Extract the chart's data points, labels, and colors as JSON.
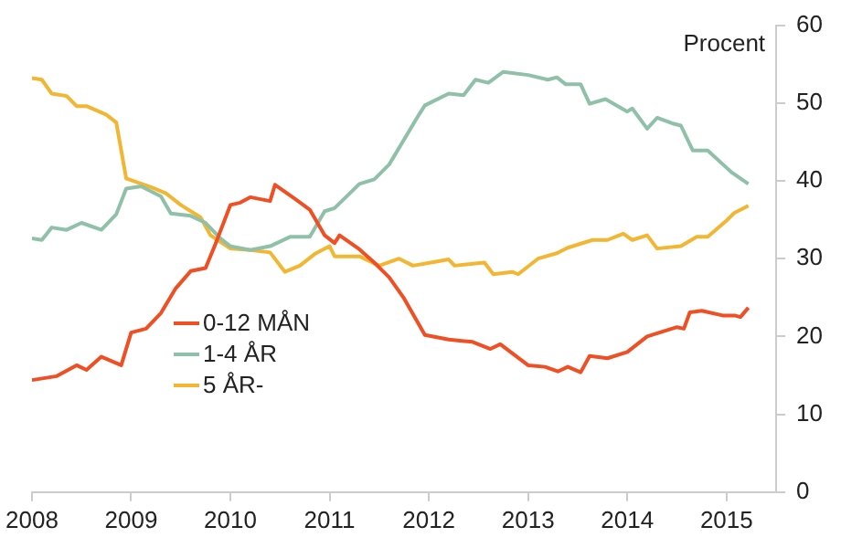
{
  "chart_data": {
    "type": "line",
    "ylabel": "Procent",
    "xlim": [
      2008,
      2015.5
    ],
    "xticks": [
      2008,
      2009,
      2010,
      2011,
      2012,
      2013,
      2014,
      2015
    ],
    "ylim": [
      0,
      60
    ],
    "yticks": [
      0,
      10,
      20,
      30,
      40,
      50,
      60
    ],
    "grid": false,
    "legend": "left",
    "marker": "none",
    "line_style": "solid",
    "series": [
      {
        "name": "0-12 MÅN",
        "color": "#f04e23",
        "x": [
          2008.0,
          2008.25,
          2008.45,
          2008.55,
          2008.7,
          2008.9,
          2009.0,
          2009.15,
          2009.3,
          2009.45,
          2009.6,
          2009.75,
          2009.85,
          2010.0,
          2010.1,
          2010.2,
          2010.4,
          2010.45,
          2010.65,
          2010.8,
          2010.95,
          2011.05,
          2011.1,
          2011.3,
          2011.45,
          2011.6,
          2011.75,
          2011.96,
          2012.2,
          2012.44,
          2012.62,
          2012.72,
          2013.0,
          2013.17,
          2013.3,
          2013.4,
          2013.53,
          2013.62,
          2013.8,
          2014.0,
          2014.2,
          2014.5,
          2014.57,
          2014.63,
          2014.75,
          2014.96,
          2015.08,
          2015.14,
          2015.22
        ],
        "values": [
          14.4,
          14.9,
          16.3,
          15.7,
          17.4,
          16.3,
          20.5,
          21,
          23,
          26.2,
          28.4,
          28.8,
          31.9,
          36.9,
          37.2,
          37.9,
          37.4,
          39.5,
          37.7,
          36.3,
          33,
          32,
          33,
          31.2,
          29.5,
          27.6,
          24.9,
          20.2,
          19.6,
          19.3,
          18.4,
          19,
          16.3,
          16.1,
          15.5,
          16.1,
          15.4,
          17.5,
          17.2,
          18,
          20,
          21.2,
          21,
          23.1,
          23.3,
          22.7,
          22.7,
          22.5,
          23.7
        ]
      },
      {
        "name": "1-4 ÅR",
        "color": "#8fc1a9",
        "x": [
          2008.0,
          2008.1,
          2008.2,
          2008.35,
          2008.5,
          2008.7,
          2008.85,
          2008.95,
          2009.1,
          2009.3,
          2009.4,
          2009.6,
          2009.75,
          2009.9,
          2010.0,
          2010.2,
          2010.4,
          2010.6,
          2010.8,
          2010.95,
          2011.05,
          2011.3,
          2011.45,
          2011.6,
          2011.9,
          2011.96,
          2012.2,
          2012.35,
          2012.47,
          2012.6,
          2012.75,
          2013.0,
          2013.2,
          2013.29,
          2013.38,
          2013.53,
          2013.62,
          2013.78,
          2014.0,
          2014.05,
          2014.2,
          2014.3,
          2014.45,
          2014.54,
          2014.66,
          2014.81,
          2015.05,
          2015.22
        ],
        "values": [
          32.6,
          32.4,
          34,
          33.7,
          34.6,
          33.7,
          35.7,
          39,
          39.3,
          38,
          35.8,
          35.5,
          34.6,
          32.6,
          31.6,
          31.1,
          31.6,
          32.8,
          32.8,
          36.1,
          36.5,
          39.6,
          40.2,
          42.1,
          48.5,
          49.7,
          51.2,
          51,
          53,
          52.6,
          54,
          53.6,
          53,
          53.3,
          52.4,
          52.4,
          49.9,
          50.5,
          48.9,
          49.3,
          46.7,
          48.1,
          47.4,
          47.1,
          43.9,
          43.9,
          41.1,
          39.6
        ]
      },
      {
        "name": "5 ÅR-",
        "color": "#f2b632",
        "x": [
          2008.0,
          2008.1,
          2008.2,
          2008.35,
          2008.45,
          2008.55,
          2008.75,
          2008.85,
          2008.95,
          2009.2,
          2009.35,
          2009.5,
          2009.7,
          2009.8,
          2010.0,
          2010.2,
          2010.4,
          2010.55,
          2010.7,
          2010.85,
          2011.0,
          2011.05,
          2011.3,
          2011.5,
          2011.7,
          2011.84,
          2012.02,
          2012.2,
          2012.26,
          2012.56,
          2012.65,
          2012.84,
          2012.9,
          2013.1,
          2013.29,
          2013.4,
          2013.65,
          2013.8,
          2013.96,
          2014.05,
          2014.2,
          2014.3,
          2014.54,
          2014.7,
          2014.81,
          2015.0,
          2015.08,
          2015.22
        ],
        "values": [
          53.2,
          53,
          51.2,
          50.9,
          49.6,
          49.6,
          48.5,
          47.5,
          40.3,
          39.2,
          38.4,
          36.9,
          35.3,
          33,
          31.3,
          31.1,
          30.8,
          28.3,
          29.1,
          30.6,
          31.6,
          30.3,
          30.3,
          29.1,
          30,
          29.1,
          29.5,
          29.9,
          29.1,
          29.5,
          28,
          28.3,
          28,
          30,
          30.7,
          31.4,
          32.4,
          32.4,
          33.2,
          32.4,
          33,
          31.3,
          31.6,
          32.8,
          32.8,
          34.9,
          35.9,
          36.8
        ]
      }
    ]
  }
}
